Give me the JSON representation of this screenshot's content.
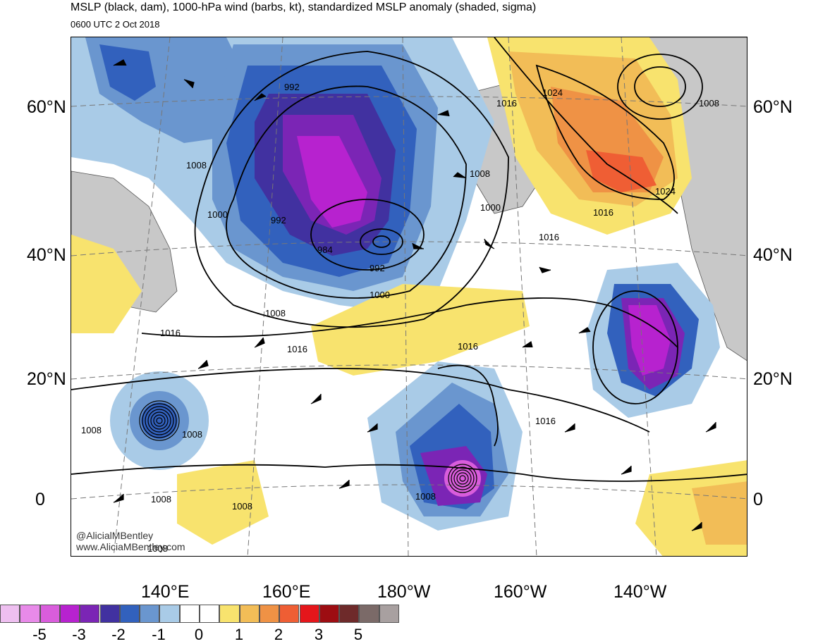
{
  "header": {
    "title": "MSLP (black, dam), 1000-hPa wind (barbs, kt), standardized MSLP anomaly (shaded, sigma)",
    "valid_time": "0600 UTC 2 Oct 2018"
  },
  "latitude_labels": [
    "60°N",
    "40°N",
    "20°N",
    "0"
  ],
  "longitude_labels": [
    "140°E",
    "160°E",
    "180°W",
    "160°W",
    "140°W"
  ],
  "contour_labels": [
    "992",
    "992",
    "1000",
    "1000",
    "984",
    "992",
    "1000",
    "1008",
    "1008",
    "1008",
    "1016",
    "1016",
    "1016",
    "1016",
    "1024",
    "1024",
    "1016",
    "1008",
    "1016",
    "1016",
    "1008",
    "1008",
    "1008",
    "1008",
    "1008",
    "1008"
  ],
  "watermark": {
    "handle": "@AlicialMBentley",
    "url": "www.AliciaMBentley.com"
  },
  "colorbar": {
    "colors": [
      "#eebff0",
      "#e88ae9",
      "#d95ddc",
      "#b722cf",
      "#7b25b5",
      "#4131a0",
      "#3261bd",
      "#6a96cf",
      "#a9cbe7",
      "#ffffff",
      "#ffffff",
      "#f8e36e",
      "#f2bd57",
      "#ef9245",
      "#ef5e34",
      "#e5161b",
      "#9d0d12",
      "#6e2a2a",
      "#7b6a68",
      "#a8a0a0"
    ],
    "tick_labels": [
      "-5",
      "-3",
      "-2",
      "-1",
      "0",
      "1",
      "2",
      "3",
      "5"
    ]
  }
}
